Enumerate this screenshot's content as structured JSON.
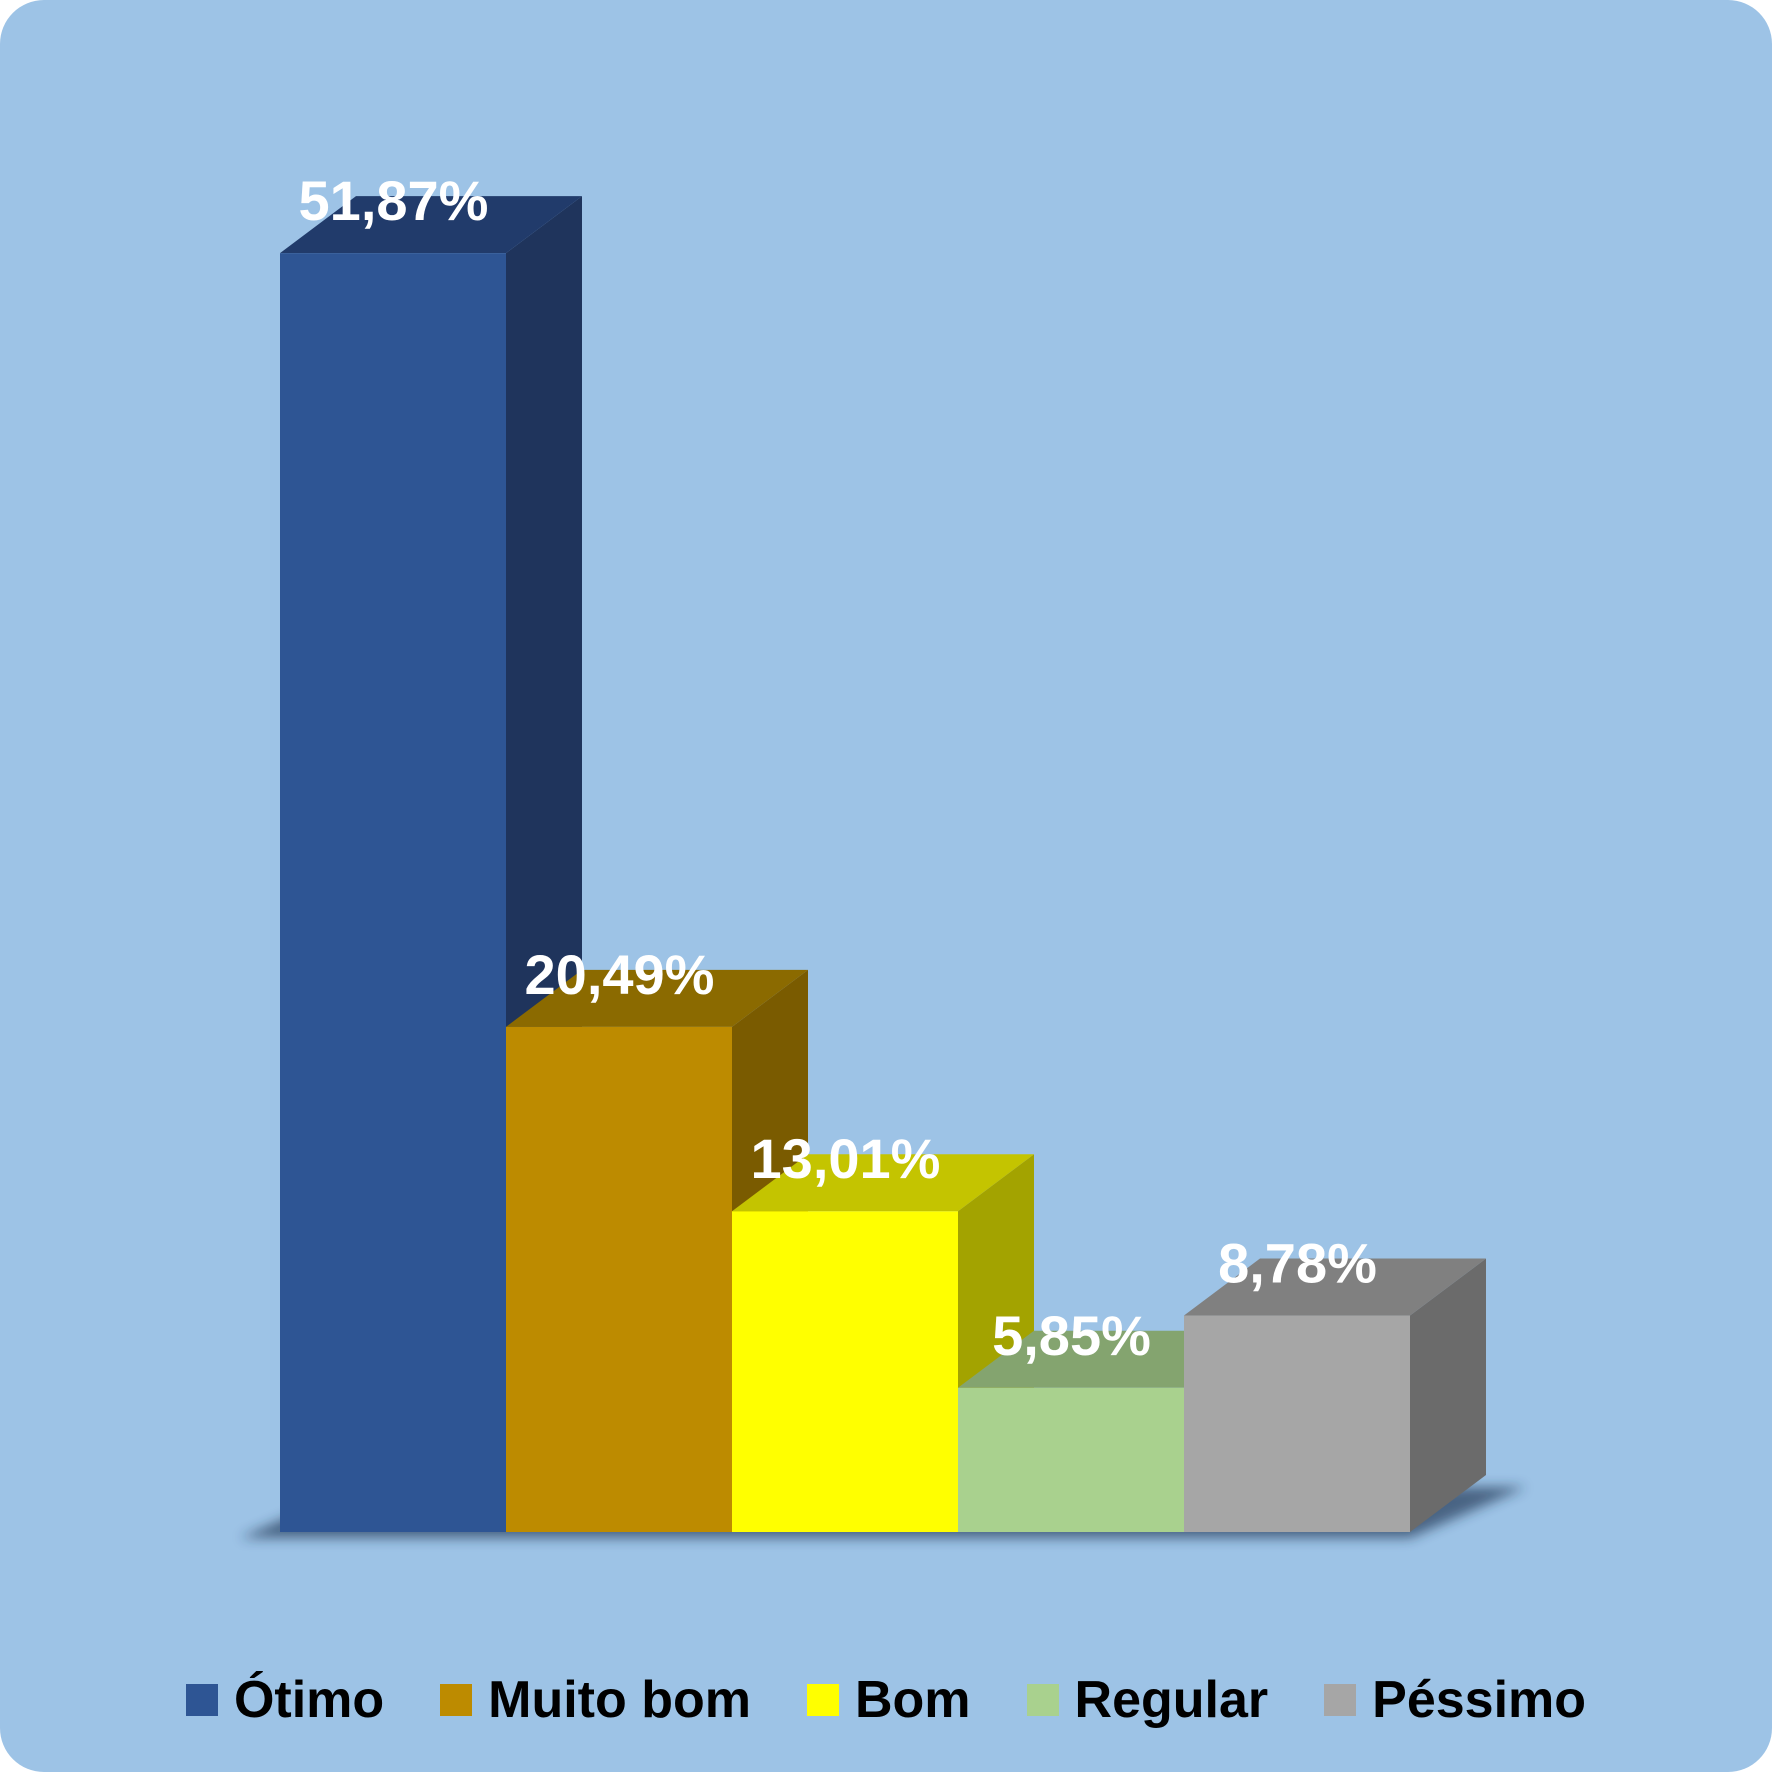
{
  "chart_data": {
    "type": "bar",
    "three_d": true,
    "categories": [
      "Ótimo",
      "Muito bom",
      "Bom",
      "Regular",
      "Péssimo"
    ],
    "values": [
      51.87,
      20.49,
      13.01,
      5.85,
      8.78
    ],
    "value_labels": [
      "51,87%",
      "20,49%",
      "13,01%",
      "5,85%",
      "8,78%"
    ],
    "unit": "%",
    "ylim": [
      0,
      55
    ],
    "grid": false,
    "legend_position": "bottom",
    "background_color": "#9dc3e6",
    "colors": {
      "front": [
        "#2e5594",
        "#bd8b00",
        "#ffff00",
        "#a9d18e",
        "#a6a6a6"
      ],
      "top": [
        "#213b6b",
        "#8b6a00",
        "#c4c400",
        "#84a46f",
        "#808080"
      ],
      "side": [
        "#1f345c",
        "#7a5b00",
        "#a3a300",
        "#6e8a5c",
        "#6b6b6b"
      ]
    }
  }
}
